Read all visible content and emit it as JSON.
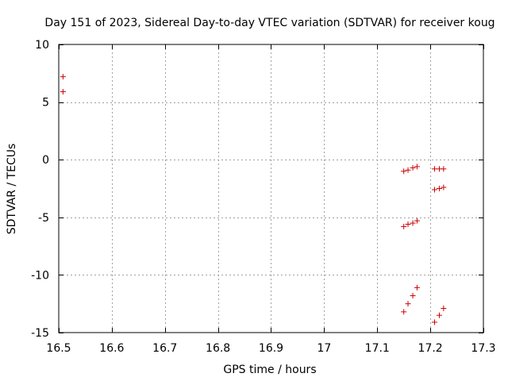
{
  "chart_data": {
    "type": "scatter",
    "title": "Day 151 of 2023, Sidereal Day-to-day VTEC variation (SDTVAR) for receiver koug",
    "xlabel": "GPS time / hours",
    "ylabel": "SDTVAR / TECUs",
    "xlim": [
      16.5,
      17.3
    ],
    "ylim": [
      -15,
      10
    ],
    "xticks": [
      16.5,
      16.6,
      16.7,
      16.8,
      16.9,
      17.0,
      17.1,
      17.2,
      17.3
    ],
    "xtick_labels": [
      "16.5",
      "16.6",
      "16.7",
      "16.8",
      "16.9",
      "17",
      "17.1",
      "17.2",
      "17.3"
    ],
    "yticks": [
      10,
      5,
      0,
      -5,
      -10,
      -15
    ],
    "ytick_labels": [
      "10",
      "5",
      "0",
      "-5",
      "-10",
      "-15"
    ],
    "grid": true,
    "marker": "+",
    "marker_color": "#cc0000",
    "series": [
      {
        "name": "SDTVAR",
        "x": [
          16.508,
          16.508,
          17.15,
          17.158,
          17.167,
          17.175,
          17.15,
          17.158,
          17.167,
          17.175,
          17.15,
          17.158,
          17.167,
          17.175,
          17.208,
          17.217,
          17.225,
          17.208,
          17.217,
          17.225,
          17.208,
          17.217,
          17.225
        ],
        "y": [
          7.2,
          5.9,
          -1.0,
          -0.9,
          -0.7,
          -0.6,
          -5.8,
          -5.6,
          -5.5,
          -5.3,
          -13.2,
          -12.5,
          -11.8,
          -11.1,
          -0.8,
          -0.8,
          -0.8,
          -2.6,
          -2.5,
          -2.4,
          -14.1,
          -13.5,
          -12.9
        ]
      }
    ]
  }
}
